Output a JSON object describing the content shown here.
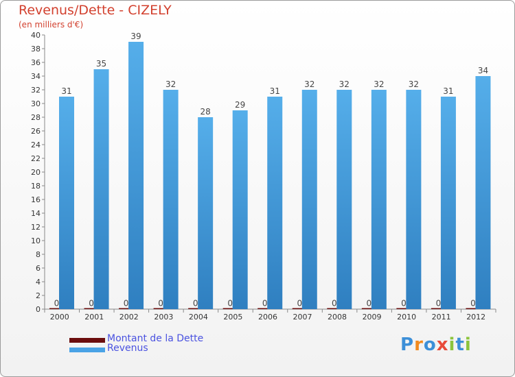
{
  "title": "Revenus/Dette - CIZELY",
  "subtitle": "(en milliers d'€)",
  "colors": {
    "revenus": "#4aa3e6",
    "dette": "#6b0d0d",
    "title": "#d2402e",
    "legend_text": "#4a52e0"
  },
  "legend": {
    "dette": "Montant de la Dette",
    "revenus": "Revenus"
  },
  "logo": {
    "text": "Proxiti",
    "letters": [
      "P",
      "r",
      "o",
      "x",
      "i",
      "t",
      "i"
    ],
    "colors": [
      "#3c8fd8",
      "#f28a1e",
      "#3c8fd8",
      "#e84a3a",
      "#8cc43c",
      "#3c8fd8",
      "#8cc43c"
    ]
  },
  "chart_data": {
    "type": "bar",
    "categories": [
      "2000",
      "2001",
      "2002",
      "2003",
      "2004",
      "2005",
      "2006",
      "2007",
      "2008",
      "2009",
      "2010",
      "2011",
      "2012"
    ],
    "series": [
      {
        "name": "Montant de la Dette",
        "values": [
          0,
          0,
          0,
          0,
          0,
          0,
          0,
          0,
          0,
          0,
          0,
          0,
          0
        ]
      },
      {
        "name": "Revenus",
        "values": [
          31,
          35,
          39,
          32,
          28,
          29,
          31,
          32,
          32,
          32,
          32,
          31,
          34
        ]
      }
    ],
    "ylim": [
      0,
      40
    ],
    "ytick_step": 2,
    "grid": false,
    "legend_position": "bottom-left"
  }
}
